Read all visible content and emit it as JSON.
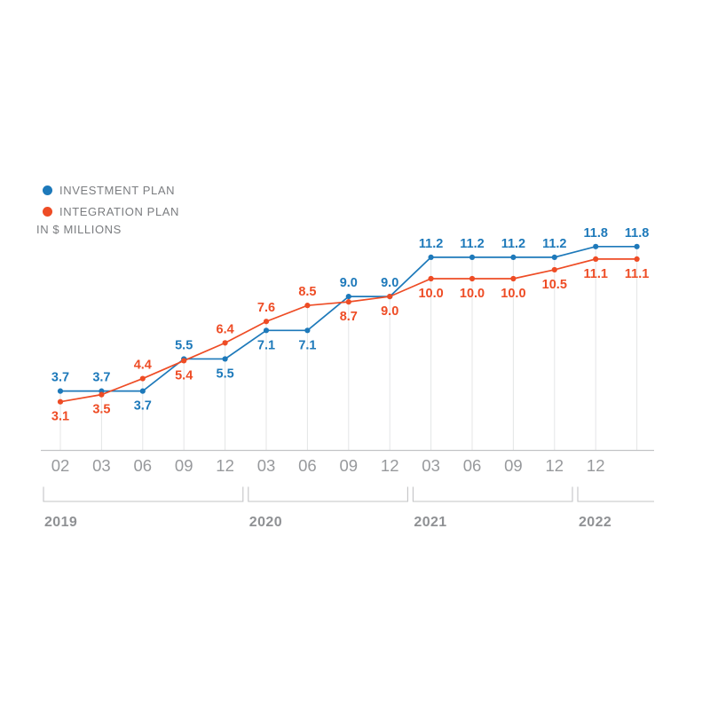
{
  "legend": {
    "items": [
      {
        "label": "INVESTMENT PLAN",
        "color": "#1d79ba"
      },
      {
        "label": "INTEGRATION PLAN",
        "color": "#ee4c25"
      }
    ],
    "units_label": "IN $ MILLIONS"
  },
  "chart_data": {
    "type": "line",
    "title": "",
    "unit": "IN $ MILLIONS",
    "legend_position": "top-left",
    "y_axis": "hidden",
    "grid": "vertical droplines from each point to x-axis",
    "x_tick_labels": [
      "02",
      "03",
      "06",
      "09",
      "12",
      "03",
      "06",
      "09",
      "12",
      "03",
      "06",
      "09",
      "12",
      "12",
      ""
    ],
    "year_groups": [
      {
        "label": "2019",
        "start_index": 0,
        "end_index": 4
      },
      {
        "label": "2020",
        "start_index": 5,
        "end_index": 8
      },
      {
        "label": "2021",
        "start_index": 9,
        "end_index": 12
      },
      {
        "label": "2022",
        "start_index": 13,
        "end_index": 14
      }
    ],
    "series": [
      {
        "name": "INVESTMENT PLAN",
        "color": "#1d79ba",
        "values": [
          3.7,
          3.7,
          3.7,
          5.5,
          5.5,
          7.1,
          7.1,
          9.0,
          9.0,
          11.2,
          11.2,
          11.2,
          11.2,
          11.8,
          11.8
        ]
      },
      {
        "name": "INTEGRATION PLAN",
        "color": "#ee4c25",
        "values": [
          3.1,
          3.5,
          4.4,
          5.4,
          6.4,
          7.6,
          8.5,
          8.7,
          9.0,
          10.0,
          10.0,
          10.0,
          10.5,
          11.1,
          11.1
        ]
      }
    ],
    "value_label_decimals": 1
  },
  "colors": {
    "background": "#ffffff",
    "axis": "#c3c4c6",
    "gridline": "#e4e5e6",
    "tick_label": "#97999c",
    "year_label": "#8f9194",
    "legend_text": "#7b7d80"
  }
}
